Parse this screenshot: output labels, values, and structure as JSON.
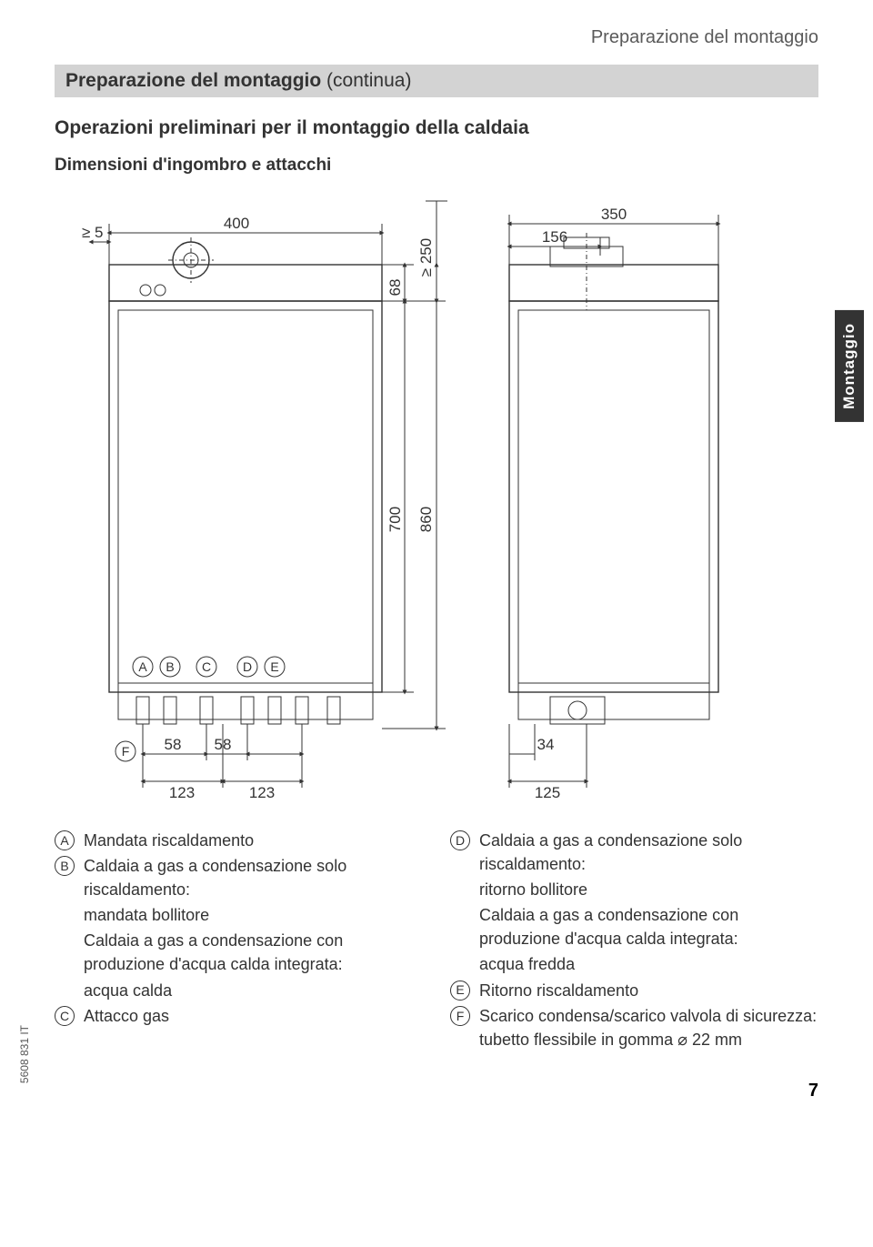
{
  "header": {
    "right_text": "Preparazione del montaggio",
    "title_bold": "Preparazione del montaggio",
    "title_cont": " (continua)",
    "section": "Operazioni preliminari per il montaggio della caldaia",
    "subheading": "Dimensioni d'ingombro e attacchi"
  },
  "side_tab": "Montaggio",
  "diagram": {
    "dimensions": {
      "left_clearance": "≥ 5",
      "width": "400",
      "top_height": "68",
      "top_clearance": "≥ 250",
      "right_top_total": "350",
      "right_top_offset": "156",
      "body_height_inner": "700",
      "body_height_outer": "860",
      "bottom_l1": "58",
      "bottom_l2": "58",
      "bottom_w1": "123",
      "bottom_w2": "123",
      "right_bot_offset": "34",
      "right_bot_width": "125"
    },
    "labels": [
      "A",
      "B",
      "C",
      "D",
      "E",
      "F"
    ],
    "stroke": "#333333",
    "fill": "#ffffff"
  },
  "legend": {
    "left": [
      {
        "letter": "A",
        "text": "Mandata riscaldamento"
      },
      {
        "letter": "B",
        "text": "Caldaia a gas a condensazione solo riscaldamento:"
      },
      {
        "letter": "",
        "text": "mandata bollitore"
      },
      {
        "letter": "",
        "text": "Caldaia a gas a condensazione con produzione d'acqua calda integrata:"
      },
      {
        "letter": "",
        "text": "acqua calda"
      },
      {
        "letter": "C",
        "text": "Attacco gas"
      }
    ],
    "right": [
      {
        "letter": "D",
        "text": "Caldaia a gas a condensazione solo riscaldamento:"
      },
      {
        "letter": "",
        "text": "ritorno bollitore"
      },
      {
        "letter": "",
        "text": "Caldaia a gas a condensazione con produzione d'acqua calda integrata:"
      },
      {
        "letter": "",
        "text": "acqua fredda"
      },
      {
        "letter": "E",
        "text": "Ritorno riscaldamento"
      },
      {
        "letter": "F",
        "text": "Scarico condensa/scarico valvola di sicurezza: tubetto flessibile in gomma ⌀ 22 mm"
      }
    ]
  },
  "doc_code": "5608 831 IT",
  "page_number": "7"
}
